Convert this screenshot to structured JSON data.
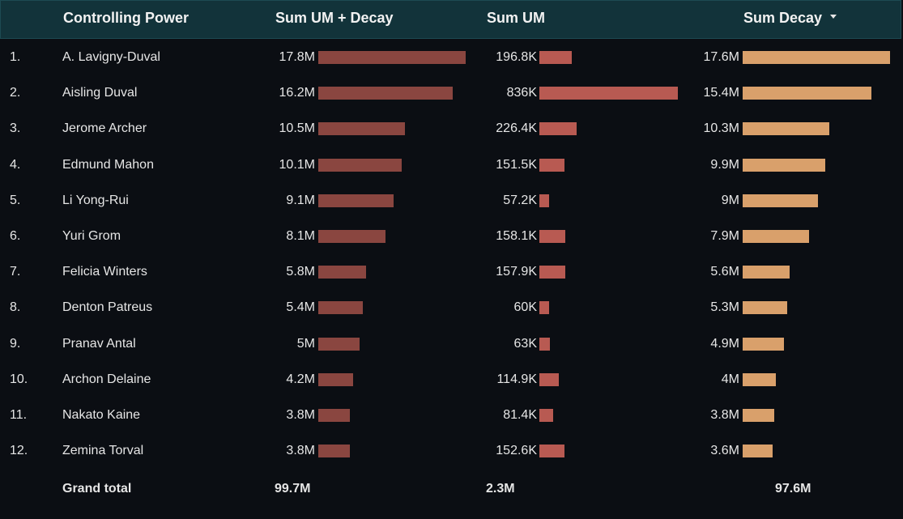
{
  "header": {
    "col_name": "Controlling Power",
    "col_um_decay": "Sum UM + Decay",
    "col_um": "Sum UM",
    "col_decay": "Sum Decay"
  },
  "colors": {
    "um_decay_bar": "#8a4640",
    "um_bar": "#b85a52",
    "decay_bar": "#d9a06b",
    "header_bg": "#12333a",
    "page_bg": "#0b0e13"
  },
  "bar_max": {
    "um_decay": 17.8,
    "um": 836,
    "decay": 17.6
  },
  "rows": [
    {
      "rank": "1.",
      "name": "A. Lavigny-Duval",
      "um_decay": "17.8M",
      "um_decay_value": 17.8,
      "um": "196.8K",
      "um_value": 196.8,
      "decay": "17.6M",
      "decay_value": 17.6
    },
    {
      "rank": "2.",
      "name": "Aisling Duval",
      "um_decay": "16.2M",
      "um_decay_value": 16.2,
      "um": "836K",
      "um_value": 836,
      "decay": "15.4M",
      "decay_value": 15.4
    },
    {
      "rank": "3.",
      "name": "Jerome Archer",
      "um_decay": "10.5M",
      "um_decay_value": 10.5,
      "um": "226.4K",
      "um_value": 226.4,
      "decay": "10.3M",
      "decay_value": 10.3
    },
    {
      "rank": "4.",
      "name": "Edmund Mahon",
      "um_decay": "10.1M",
      "um_decay_value": 10.1,
      "um": "151.5K",
      "um_value": 151.5,
      "decay": "9.9M",
      "decay_value": 9.9
    },
    {
      "rank": "5.",
      "name": "Li Yong-Rui",
      "um_decay": "9.1M",
      "um_decay_value": 9.1,
      "um": "57.2K",
      "um_value": 57.2,
      "decay": "9M",
      "decay_value": 9.0
    },
    {
      "rank": "6.",
      "name": "Yuri Grom",
      "um_decay": "8.1M",
      "um_decay_value": 8.1,
      "um": "158.1K",
      "um_value": 158.1,
      "decay": "7.9M",
      "decay_value": 7.9
    },
    {
      "rank": "7.",
      "name": "Felicia Winters",
      "um_decay": "5.8M",
      "um_decay_value": 5.8,
      "um": "157.9K",
      "um_value": 157.9,
      "decay": "5.6M",
      "decay_value": 5.6
    },
    {
      "rank": "8.",
      "name": "Denton Patreus",
      "um_decay": "5.4M",
      "um_decay_value": 5.4,
      "um": "60K",
      "um_value": 60,
      "decay": "5.3M",
      "decay_value": 5.3
    },
    {
      "rank": "9.",
      "name": "Pranav Antal",
      "um_decay": "5M",
      "um_decay_value": 5.0,
      "um": "63K",
      "um_value": 63,
      "decay": "4.9M",
      "decay_value": 4.9
    },
    {
      "rank": "10.",
      "name": "Archon Delaine",
      "um_decay": "4.2M",
      "um_decay_value": 4.2,
      "um": "114.9K",
      "um_value": 114.9,
      "decay": "4M",
      "decay_value": 4.0
    },
    {
      "rank": "11.",
      "name": "Nakato Kaine",
      "um_decay": "3.8M",
      "um_decay_value": 3.8,
      "um": "81.4K",
      "um_value": 81.4,
      "decay": "3.8M",
      "decay_value": 3.8
    },
    {
      "rank": "12.",
      "name": "Zemina Torval",
      "um_decay": "3.8M",
      "um_decay_value": 3.8,
      "um": "152.6K",
      "um_value": 152.6,
      "decay": "3.6M",
      "decay_value": 3.6
    }
  ],
  "total": {
    "label": "Grand total",
    "um_decay": "99.7M",
    "um": "2.3M",
    "decay": "97.6M"
  }
}
